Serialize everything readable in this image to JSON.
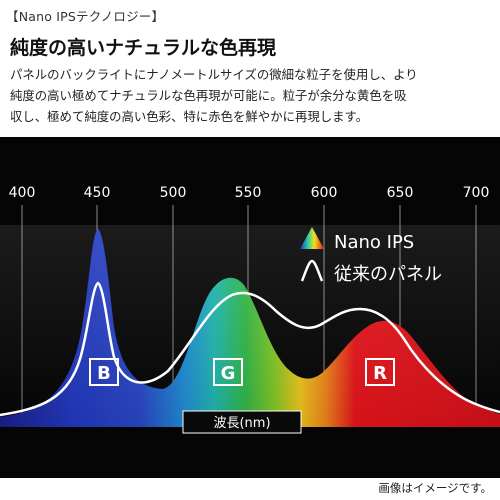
{
  "section_tag": "【Nano IPSテクノロジー】",
  "headline": "純度の高いナチュラルな色再現",
  "description": [
    "パネルのバックライトにナノメートルサイズの微細な粒子を使用し、より",
    "純度の高い極めてナチュラルな色再現が可能に。粒子が余分な黄色を吸",
    "収し、極めて純度の高い色彩、特に赤色を鮮やかに再現します。"
  ],
  "legend": {
    "nano_ips": "Nano IPS",
    "conventional": "従来のパネル"
  },
  "axis_ticks": [
    "400",
    "450",
    "500",
    "550",
    "600",
    "650",
    "700"
  ],
  "axis_label": "波長(nm)",
  "peak_labels": {
    "blue": "B",
    "green": "G",
    "red": "R"
  },
  "footnote": "画像はイメージです。",
  "colors": {
    "background": "#050505",
    "grid": "#8a8a8a",
    "blue": "#1f36b8",
    "green": "#2fb24a",
    "red": "#e8141b",
    "curve": "#ffffff"
  }
}
